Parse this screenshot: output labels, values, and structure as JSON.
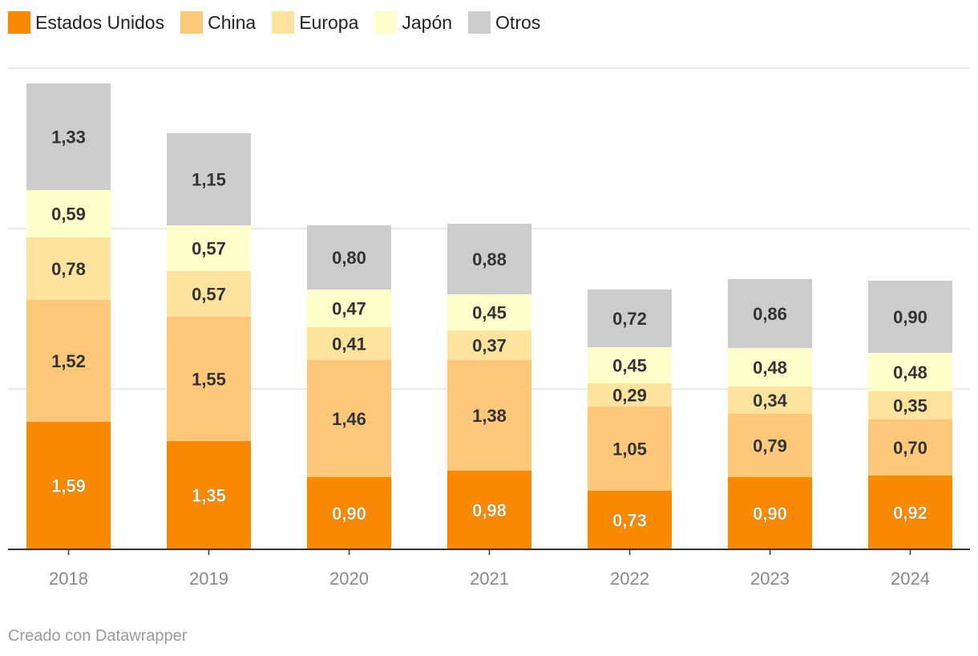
{
  "chart_data": {
    "type": "bar",
    "stacked": true,
    "categories": [
      "2018",
      "2019",
      "2020",
      "2021",
      "2022",
      "2023",
      "2024"
    ],
    "series": [
      {
        "name": "Estados Unidos",
        "color": "#f98a00",
        "values": [
          1.59,
          1.35,
          0.9,
          0.98,
          0.73,
          0.9,
          0.92
        ],
        "labels": [
          "1,59",
          "1,35",
          "0,90",
          "0,98",
          "0,73",
          "0,90",
          "0,92"
        ]
      },
      {
        "name": "China",
        "color": "#fec87a",
        "values": [
          1.52,
          1.55,
          1.46,
          1.38,
          1.05,
          0.79,
          0.7
        ],
        "labels": [
          "1,52",
          "1,55",
          "1,46",
          "1,38",
          "1,05",
          "0,79",
          "0,70"
        ]
      },
      {
        "name": "Europa",
        "color": "#fee39f",
        "values": [
          0.78,
          0.57,
          0.41,
          0.37,
          0.29,
          0.34,
          0.35
        ],
        "labels": [
          "0,78",
          "0,57",
          "0,41",
          "0,37",
          "0,29",
          "0,34",
          "0,35"
        ]
      },
      {
        "name": "Japón",
        "color": "#ffffcc",
        "values": [
          0.59,
          0.57,
          0.47,
          0.45,
          0.45,
          0.48,
          0.48
        ],
        "labels": [
          "0,59",
          "0,57",
          "0,47",
          "0,45",
          "0,45",
          "0,48",
          "0,48"
        ]
      },
      {
        "name": "Otros",
        "color": "#cccccc",
        "values": [
          1.33,
          1.15,
          0.8,
          0.88,
          0.72,
          0.86,
          0.9
        ],
        "labels": [
          "1,33",
          "1,15",
          "0,80",
          "0,88",
          "0,72",
          "0,86",
          "0,90"
        ]
      }
    ],
    "ylim": [
      0,
      6
    ],
    "gridlines": [
      2,
      4,
      6
    ],
    "legend": "top-left"
  },
  "footer": "Creado con Datawrapper"
}
